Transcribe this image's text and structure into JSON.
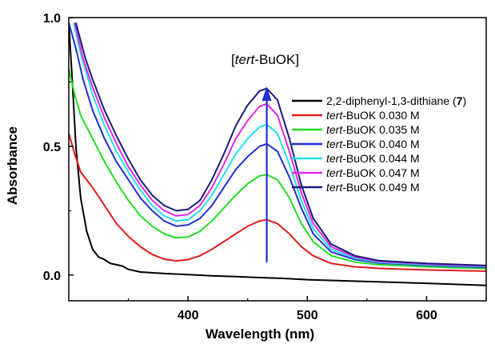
{
  "chart_data": {
    "type": "line",
    "xlabel": "Wavelength (nm)",
    "ylabel": "Absorbance",
    "xlim": [
      300,
      650
    ],
    "ylim": [
      -0.1,
      1.0
    ],
    "x_ticks": [
      "400",
      "500",
      "600"
    ],
    "y_ticks": [
      "0.0",
      "0.5",
      "1.0"
    ],
    "grid": false,
    "legend_position": "right",
    "annotation": {
      "prefix": "[",
      "italic": "tert",
      "suffix": "-BuOK]",
      "arrow_x": 466
    },
    "series": [
      {
        "legend": {
          "pre": "2,2-diphenyl-1,3-dithiane (",
          "italic": "",
          "bold": "7",
          "post": ")"
        },
        "color": "#000000",
        "points": [
          [
            300,
            0.98
          ],
          [
            303,
            0.75
          ],
          [
            306,
            0.5
          ],
          [
            310,
            0.3
          ],
          [
            315,
            0.17
          ],
          [
            320,
            0.1
          ],
          [
            325,
            0.07
          ],
          [
            330,
            0.06
          ],
          [
            335,
            0.045
          ],
          [
            340,
            0.04
          ],
          [
            345,
            0.035
          ],
          [
            350,
            0.022
          ],
          [
            360,
            0.012
          ],
          [
            380,
            0.006
          ],
          [
            400,
            0.002
          ],
          [
            420,
            -0.003
          ],
          [
            440,
            -0.006
          ],
          [
            460,
            -0.01
          ],
          [
            480,
            -0.013
          ],
          [
            500,
            -0.018
          ],
          [
            550,
            -0.025
          ],
          [
            600,
            -0.032
          ],
          [
            650,
            -0.04
          ]
        ]
      },
      {
        "legend": {
          "pre": "",
          "italic": "tert",
          "bold": "",
          "post": "-BuOK 0.030 M"
        },
        "color": "#e31a1c",
        "points": [
          [
            300,
            0.55
          ],
          [
            305,
            0.47
          ],
          [
            310,
            0.4
          ],
          [
            320,
            0.34
          ],
          [
            330,
            0.27
          ],
          [
            340,
            0.2
          ],
          [
            350,
            0.15
          ],
          [
            360,
            0.11
          ],
          [
            370,
            0.08
          ],
          [
            380,
            0.062
          ],
          [
            390,
            0.055
          ],
          [
            400,
            0.06
          ],
          [
            410,
            0.075
          ],
          [
            420,
            0.1
          ],
          [
            430,
            0.13
          ],
          [
            440,
            0.16
          ],
          [
            450,
            0.19
          ],
          [
            460,
            0.21
          ],
          [
            466,
            0.215
          ],
          [
            475,
            0.2
          ],
          [
            485,
            0.16
          ],
          [
            495,
            0.11
          ],
          [
            505,
            0.075
          ],
          [
            520,
            0.045
          ],
          [
            540,
            0.032
          ],
          [
            560,
            0.026
          ],
          [
            600,
            0.02
          ],
          [
            650,
            0.015
          ]
        ]
      },
      {
        "legend": {
          "pre": "",
          "italic": "tert",
          "bold": "",
          "post": "-BuOK 0.035 M"
        },
        "color": "#22dd22",
        "points": [
          [
            300,
            0.8
          ],
          [
            305,
            0.7
          ],
          [
            310,
            0.62
          ],
          [
            320,
            0.53
          ],
          [
            330,
            0.44
          ],
          [
            340,
            0.36
          ],
          [
            350,
            0.29
          ],
          [
            360,
            0.23
          ],
          [
            370,
            0.19
          ],
          [
            380,
            0.16
          ],
          [
            390,
            0.145
          ],
          [
            400,
            0.148
          ],
          [
            410,
            0.17
          ],
          [
            420,
            0.21
          ],
          [
            430,
            0.26
          ],
          [
            440,
            0.31
          ],
          [
            450,
            0.355
          ],
          [
            460,
            0.385
          ],
          [
            466,
            0.39
          ],
          [
            475,
            0.37
          ],
          [
            485,
            0.3
          ],
          [
            495,
            0.2
          ],
          [
            505,
            0.13
          ],
          [
            520,
            0.075
          ],
          [
            540,
            0.05
          ],
          [
            560,
            0.04
          ],
          [
            600,
            0.032
          ],
          [
            650,
            0.025
          ]
        ]
      },
      {
        "legend": {
          "pre": "",
          "italic": "tert",
          "bold": "",
          "post": "-BuOK 0.040 M"
        },
        "color": "#1f2fd0",
        "points": [
          [
            300,
            0.98
          ],
          [
            306,
            0.88
          ],
          [
            312,
            0.76
          ],
          [
            320,
            0.64
          ],
          [
            330,
            0.53
          ],
          [
            340,
            0.44
          ],
          [
            350,
            0.37
          ],
          [
            360,
            0.3
          ],
          [
            370,
            0.25
          ],
          [
            380,
            0.21
          ],
          [
            390,
            0.19
          ],
          [
            400,
            0.195
          ],
          [
            410,
            0.22
          ],
          [
            420,
            0.27
          ],
          [
            430,
            0.34
          ],
          [
            440,
            0.41
          ],
          [
            450,
            0.46
          ],
          [
            460,
            0.5
          ],
          [
            466,
            0.51
          ],
          [
            475,
            0.48
          ],
          [
            485,
            0.38
          ],
          [
            495,
            0.26
          ],
          [
            505,
            0.16
          ],
          [
            520,
            0.09
          ],
          [
            540,
            0.06
          ],
          [
            560,
            0.047
          ],
          [
            600,
            0.038
          ],
          [
            650,
            0.03
          ]
        ]
      },
      {
        "legend": {
          "pre": "",
          "italic": "tert",
          "bold": "",
          "post": "-BuOK 0.044 M"
        },
        "color": "#22e0f0",
        "points": [
          [
            304,
            0.98
          ],
          [
            310,
            0.86
          ],
          [
            320,
            0.7
          ],
          [
            330,
            0.58
          ],
          [
            340,
            0.48
          ],
          [
            350,
            0.4
          ],
          [
            360,
            0.33
          ],
          [
            370,
            0.27
          ],
          [
            380,
            0.23
          ],
          [
            390,
            0.21
          ],
          [
            400,
            0.215
          ],
          [
            410,
            0.25
          ],
          [
            420,
            0.31
          ],
          [
            430,
            0.39
          ],
          [
            440,
            0.47
          ],
          [
            450,
            0.53
          ],
          [
            460,
            0.575
          ],
          [
            466,
            0.585
          ],
          [
            475,
            0.55
          ],
          [
            485,
            0.43
          ],
          [
            495,
            0.29
          ],
          [
            505,
            0.18
          ],
          [
            520,
            0.1
          ],
          [
            540,
            0.065
          ],
          [
            560,
            0.05
          ],
          [
            600,
            0.04
          ],
          [
            650,
            0.033
          ]
        ]
      },
      {
        "legend": {
          "pre": "",
          "italic": "tert",
          "bold": "",
          "post": "-BuOK 0.047 M"
        },
        "color": "#e02ae0",
        "points": [
          [
            305,
            0.98
          ],
          [
            312,
            0.84
          ],
          [
            320,
            0.73
          ],
          [
            330,
            0.61
          ],
          [
            340,
            0.51
          ],
          [
            350,
            0.42
          ],
          [
            360,
            0.35
          ],
          [
            370,
            0.29
          ],
          [
            380,
            0.25
          ],
          [
            390,
            0.23
          ],
          [
            400,
            0.235
          ],
          [
            410,
            0.27
          ],
          [
            420,
            0.34
          ],
          [
            430,
            0.43
          ],
          [
            440,
            0.53
          ],
          [
            450,
            0.6
          ],
          [
            460,
            0.655
          ],
          [
            466,
            0.665
          ],
          [
            475,
            0.62
          ],
          [
            485,
            0.48
          ],
          [
            495,
            0.32
          ],
          [
            505,
            0.2
          ],
          [
            520,
            0.11
          ],
          [
            540,
            0.07
          ],
          [
            560,
            0.053
          ],
          [
            600,
            0.043
          ],
          [
            650,
            0.035
          ]
        ]
      },
      {
        "legend": {
          "pre": "",
          "italic": "tert",
          "bold": "",
          "post": "-BuOK 0.049 M"
        },
        "color": "#1a1a7a",
        "points": [
          [
            306,
            0.98
          ],
          [
            314,
            0.84
          ],
          [
            320,
            0.76
          ],
          [
            330,
            0.64
          ],
          [
            340,
            0.54
          ],
          [
            350,
            0.45
          ],
          [
            360,
            0.37
          ],
          [
            370,
            0.31
          ],
          [
            380,
            0.27
          ],
          [
            390,
            0.25
          ],
          [
            400,
            0.255
          ],
          [
            410,
            0.29
          ],
          [
            420,
            0.37
          ],
          [
            430,
            0.47
          ],
          [
            440,
            0.58
          ],
          [
            450,
            0.66
          ],
          [
            460,
            0.715
          ],
          [
            466,
            0.725
          ],
          [
            475,
            0.68
          ],
          [
            485,
            0.53
          ],
          [
            495,
            0.35
          ],
          [
            505,
            0.22
          ],
          [
            520,
            0.12
          ],
          [
            540,
            0.075
          ],
          [
            560,
            0.056
          ],
          [
            600,
            0.045
          ],
          [
            650,
            0.037
          ]
        ]
      }
    ]
  }
}
